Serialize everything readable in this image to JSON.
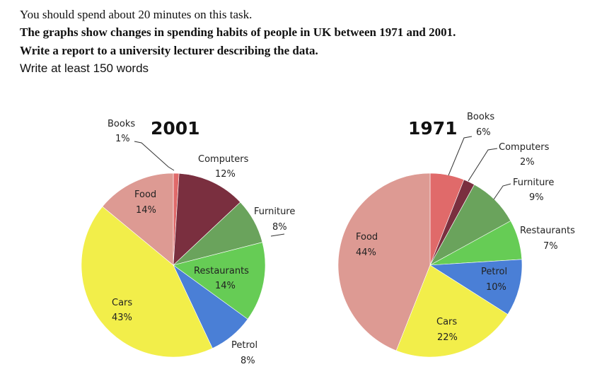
{
  "task": {
    "line1": "You should spend about 20 minutes on this task.",
    "line2": "The graphs show changes in spending habits of people in UK between 1971 and 2001.",
    "line3": "Write a report to a university lecturer describing the data.",
    "line4": "Write at least 150 words"
  },
  "chart_data": [
    {
      "type": "pie",
      "title": "2001",
      "categories": [
        "Books",
        "Computers",
        "Furniture",
        "Restaurants",
        "Petrol",
        "Cars",
        "Food"
      ],
      "values": [
        1,
        12,
        8,
        14,
        8,
        43,
        14
      ],
      "value_labels": [
        "1%",
        "12%",
        "8%",
        "14%",
        "8%",
        "43%",
        "14%"
      ],
      "colors": [
        "#e06a6a",
        "#7a2f3f",
        "#6aa35c",
        "#66cc55",
        "#4a7fd6",
        "#f2ee4a",
        "#dd9a93"
      ]
    },
    {
      "type": "pie",
      "title": "1971",
      "categories": [
        "Books",
        "Computers",
        "Furniture",
        "Restaurants",
        "Petrol",
        "Cars",
        "Food"
      ],
      "values": [
        6,
        2,
        9,
        7,
        10,
        22,
        44
      ],
      "value_labels": [
        "6%",
        "2%",
        "9%",
        "7%",
        "10%",
        "22%",
        "44%"
      ],
      "colors": [
        "#e06a6a",
        "#7a2f3f",
        "#6aa35c",
        "#66cc55",
        "#4a7fd6",
        "#f2ee4a",
        "#dd9a93"
      ]
    }
  ]
}
